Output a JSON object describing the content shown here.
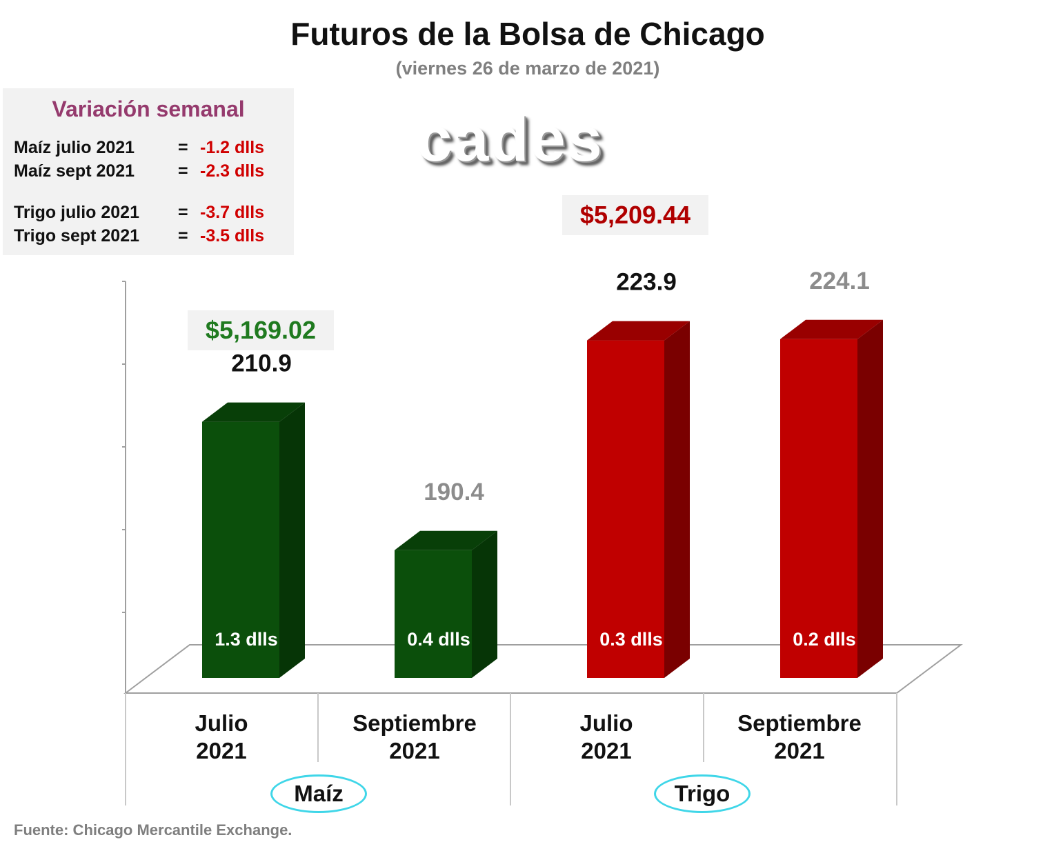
{
  "title": "Futuros de la Bolsa de Chicago",
  "subtitle": "(viernes 26 de marzo de 2021)",
  "logo_text": "cades",
  "variation_box": {
    "title": "Variación semanal",
    "title_color": "#953a6d",
    "value_color": "#d00000",
    "rows": [
      {
        "label": "Maíz julio 2021",
        "eq": "=",
        "value": "-1.2 dlls"
      },
      {
        "label": "Maíz sept 2021",
        "eq": "=",
        "value": "-2.3 dlls"
      },
      {
        "label": "Trigo julio 2021",
        "eq": "=",
        "value": "-3.7 dlls"
      },
      {
        "label": "Trigo sept 2021",
        "eq": "=",
        "value": "-3.5 dlls"
      }
    ]
  },
  "totals": {
    "maiz": {
      "text": "$5,169.02",
      "color": "#1f7a1f"
    },
    "trigo": {
      "text": "$5,209.44",
      "color": "#b00000"
    }
  },
  "source": "Fuente: Chicago Mercantile Exchange.",
  "colors": {
    "green_front": "#0b4f0b",
    "green_side": "#063506",
    "green_top": "#083f08",
    "red_front": "#c00000",
    "red_side": "#7a0000",
    "red_top": "#990000",
    "label_dark": "#111111",
    "label_grey": "#8c8c8c"
  },
  "chart_data": {
    "type": "bar",
    "categories": [
      "Julio 2021",
      "Septiembre 2021",
      "Julio 2021",
      "Septiembre 2021"
    ],
    "category_lines": [
      [
        "Julio",
        "2021"
      ],
      [
        "Septiembre",
        "2021"
      ],
      [
        "Julio",
        "2021"
      ],
      [
        "Septiembre",
        "2021"
      ]
    ],
    "groups": [
      {
        "name": "Maíz",
        "categories": [
          0,
          1
        ]
      },
      {
        "name": "Trigo",
        "categories": [
          2,
          3
        ]
      }
    ],
    "values": [
      210.9,
      190.4,
      223.9,
      224.1
    ],
    "value_labels": [
      "210.9",
      "190.4",
      "223.9",
      "224.1"
    ],
    "value_label_tone": [
      "dark",
      "grey",
      "dark",
      "grey"
    ],
    "inner_labels": [
      "1.3 dlls",
      "0.4 dlls",
      "0.3 dlls",
      "0.2 dlls"
    ],
    "bar_colors": [
      "green",
      "green",
      "red",
      "red"
    ],
    "ylim": [
      170,
      226
    ],
    "grid": false,
    "legend": "none"
  }
}
